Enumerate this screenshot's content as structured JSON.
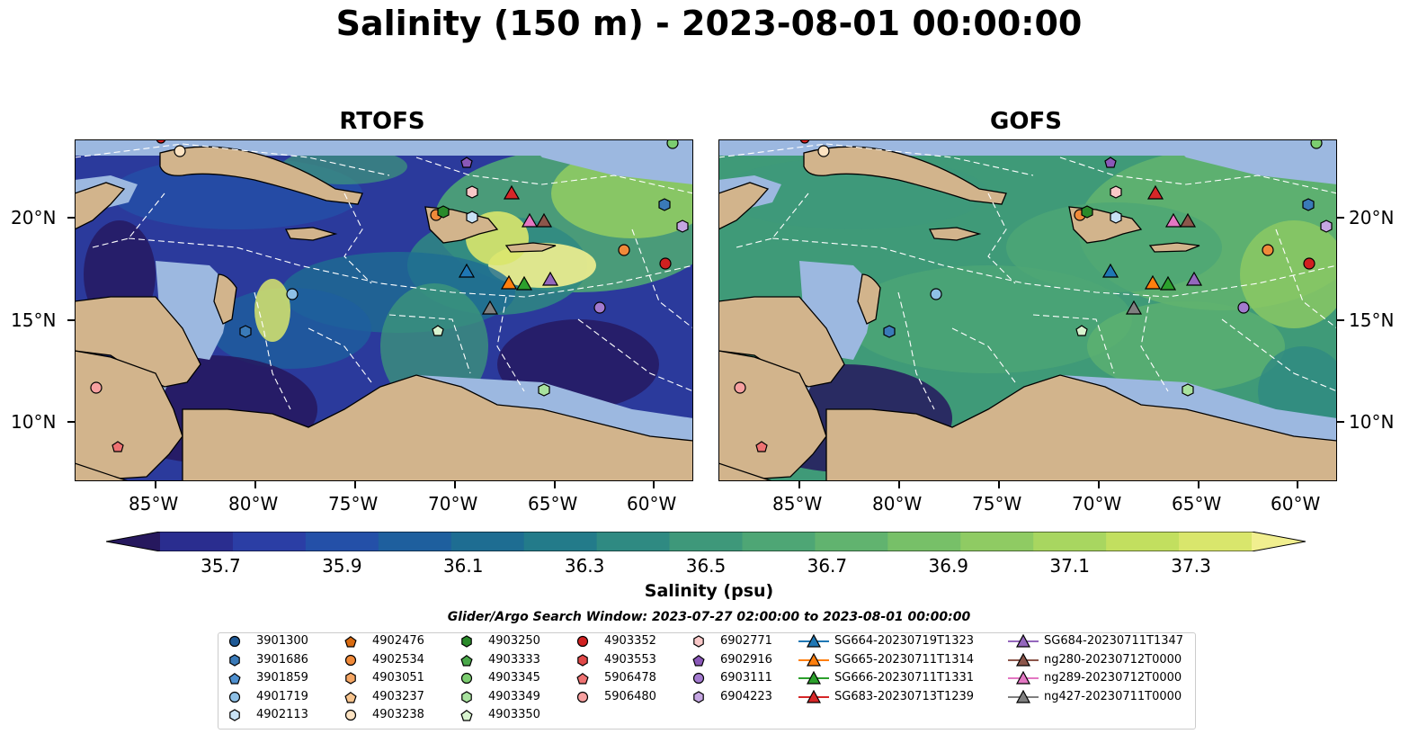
{
  "title": "Salinity (150 m) - 2023-08-01 00:00:00",
  "panels": [
    {
      "title": "RTOFS"
    },
    {
      "title": "GOFS"
    }
  ],
  "axes": {
    "lat_ticks": [
      "20°N",
      "15°N",
      "10°N"
    ],
    "lon_ticks": [
      "85°W",
      "80°W",
      "75°W",
      "70°W",
      "65°W",
      "60°W"
    ]
  },
  "colorbar": {
    "label": "Salinity (psu)",
    "ticks": [
      "35.7",
      "35.9",
      "36.1",
      "36.3",
      "36.5",
      "36.7",
      "36.9",
      "37.1",
      "37.3"
    ],
    "range": [
      35.6,
      37.4
    ],
    "extend": "both",
    "colors": [
      "#26185e",
      "#2a2d8f",
      "#2b3ea5",
      "#2450a8",
      "#1e5f9e",
      "#1e6d92",
      "#237b8a",
      "#2f8a82",
      "#3e987a",
      "#4ea675",
      "#61b36f",
      "#77c068",
      "#8fcb63",
      "#a8d660",
      "#c2df5f",
      "#d9e66c",
      "#f1ef8f"
    ]
  },
  "search_window": "Glider/Argo Search Window: 2023-07-27 02:00:00 to 2023-08-01 00:00:00",
  "legend": [
    {
      "label": "3901300",
      "marker": "circle",
      "color": "#1f5a96"
    },
    {
      "label": "3901686",
      "marker": "hexagon",
      "color": "#3a7ab8"
    },
    {
      "label": "3901859",
      "marker": "pentagon",
      "color": "#4f90cf"
    },
    {
      "label": "4901719",
      "marker": "circle",
      "color": "#8ec0e6"
    },
    {
      "label": "4902113",
      "marker": "hexagon",
      "color": "#c8e2f5"
    },
    {
      "label": "4902476",
      "marker": "pentagon",
      "color": "#d86a10"
    },
    {
      "label": "4902534",
      "marker": "circle",
      "color": "#f08a3a"
    },
    {
      "label": "4903051",
      "marker": "hexagon",
      "color": "#f5a664"
    },
    {
      "label": "4903237",
      "marker": "pentagon",
      "color": "#f7c48e"
    },
    {
      "label": "4903238",
      "marker": "circle",
      "color": "#fde3c2"
    },
    {
      "label": "4903250",
      "marker": "hexagon",
      "color": "#2a8a2a"
    },
    {
      "label": "4903333",
      "marker": "pentagon",
      "color": "#4aa84a"
    },
    {
      "label": "4903345",
      "marker": "circle",
      "color": "#7ccd70"
    },
    {
      "label": "4903349",
      "marker": "hexagon",
      "color": "#a8e29e"
    },
    {
      "label": "4903350",
      "marker": "pentagon",
      "color": "#d8f4cf"
    },
    {
      "label": "4903352",
      "marker": "circle",
      "color": "#d02020"
    },
    {
      "label": "4903553",
      "marker": "hexagon",
      "color": "#e04848"
    },
    {
      "label": "5906478",
      "marker": "pentagon",
      "color": "#ee7272"
    },
    {
      "label": "5906480",
      "marker": "circle",
      "color": "#f7a0a0"
    },
    {
      "label": "6902771",
      "marker": "hexagon",
      "color": "#f9c8c8"
    },
    {
      "label": "6902916",
      "marker": "pentagon",
      "color": "#8a58b8"
    },
    {
      "label": "6903111",
      "marker": "circle",
      "color": "#a37acf"
    },
    {
      "label": "6904223",
      "marker": "hexagon",
      "color": "#c5a6e2"
    },
    {
      "label": "SG664-20230719T1323",
      "marker": "triangle",
      "color": "#1f77b4"
    },
    {
      "label": "SG665-20230711T1314",
      "marker": "triangle",
      "color": "#ff7f0e"
    },
    {
      "label": "SG666-20230711T1331",
      "marker": "triangle",
      "color": "#2ca02c"
    },
    {
      "label": "SG683-20230713T1239",
      "marker": "triangle",
      "color": "#d62728"
    },
    {
      "label": "SG684-20230711T1347",
      "marker": "triangle",
      "color": "#9467bd"
    },
    {
      "label": "ng280-20230712T0000",
      "marker": "triangle",
      "color": "#8c564b"
    },
    {
      "label": "ng289-20230712T0000",
      "marker": "triangle",
      "color": "#e377c2"
    },
    {
      "label": "ng427-20230711T0000",
      "marker": "triangle",
      "color": "#7f7f7f"
    }
  ],
  "land_color": "#d2b48c",
  "shelf_color": "#9cb8e0"
}
